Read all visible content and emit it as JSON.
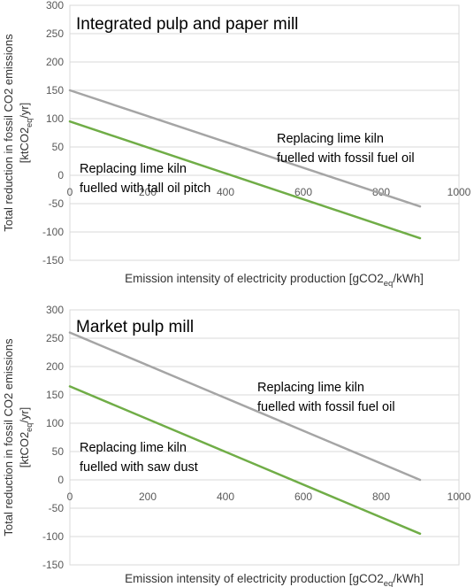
{
  "chart_data": [
    {
      "type": "line",
      "title": "Integrated pulp and paper mill",
      "xlabel": {
        "main": "Emission intensity of electricity production [gCO2",
        "sub": "eq",
        "end": "/kWh]"
      },
      "ylabel": {
        "line1": "Total reduction in fossil CO2 emissions",
        "line2_main": "[ktCO2",
        "line2_sub": "eq",
        "line2_end": "/yr]"
      },
      "xlim": [
        0,
        1000
      ],
      "ylim": [
        -150,
        300
      ],
      "xticks": [
        0,
        200,
        400,
        600,
        800,
        1000
      ],
      "yticks": [
        -150,
        -100,
        -50,
        0,
        50,
        100,
        150,
        200,
        250,
        300
      ],
      "grid": true,
      "series": [
        {
          "color": "#a5a5a5",
          "x": [
            0,
            900
          ],
          "y": [
            150,
            -55
          ]
        },
        {
          "color": "#70ad47",
          "x": [
            0,
            900
          ],
          "y": [
            95,
            -111
          ]
        }
      ],
      "annotations": [
        {
          "id": "fossil",
          "line1": "Replacing lime kiln",
          "line2": "fuelled with fossil fuel oil"
        },
        {
          "id": "tall",
          "line1": "Replacing lime kiln",
          "line2": "fuelled with tall oil pitch"
        }
      ]
    },
    {
      "type": "line",
      "title": "Market pulp mill",
      "xlabel": {
        "main": "Emission intensity of electricity production [gCO2",
        "sub": "eq",
        "end": "/kWh]"
      },
      "ylabel": {
        "line1": "Total reduction in fossil CO2 emissions",
        "line2_main": "[ktCO2",
        "line2_sub": "eq",
        "line2_end": "/yr]"
      },
      "xlim": [
        0,
        1000
      ],
      "ylim": [
        -150,
        300
      ],
      "xticks": [
        0,
        200,
        400,
        600,
        800,
        1000
      ],
      "yticks": [
        -150,
        -100,
        -50,
        0,
        50,
        100,
        150,
        200,
        250,
        300
      ],
      "grid": true,
      "series": [
        {
          "color": "#a5a5a5",
          "x": [
            0,
            900
          ],
          "y": [
            260,
            0
          ]
        },
        {
          "color": "#70ad47",
          "x": [
            0,
            900
          ],
          "y": [
            165,
            -95
          ]
        }
      ],
      "annotations": [
        {
          "id": "fossil",
          "line1": "Replacing lime kiln",
          "line2": "fuelled with fossil fuel oil"
        },
        {
          "id": "saw",
          "line1": "Replacing lime kiln",
          "line2": "fuelled with saw dust"
        }
      ]
    }
  ]
}
